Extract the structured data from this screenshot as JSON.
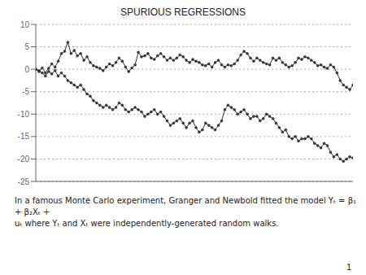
{
  "chart_data": {
    "type": "line",
    "title": "SPURIOUS REGRESSIONS",
    "annotations": [
      "In a famous Monte Carlo experiment, Granger and Newbold fitted the model Yₜ = β₁ + β₂Xₜ +\nuₜ where Yₜ and Xₜ were independently-generated random walks.",
      "1"
    ],
    "x": [
      0,
      1,
      2,
      3,
      4,
      5,
      6,
      7,
      8,
      9,
      10,
      11,
      12,
      13,
      14,
      15,
      16,
      17,
      18,
      19,
      20,
      21,
      22,
      23,
      24,
      25,
      26,
      27,
      28,
      29,
      30,
      31,
      32,
      33,
      34,
      35,
      36,
      37,
      38,
      39,
      40,
      41,
      42,
      43,
      44,
      45,
      46,
      47,
      48,
      49,
      50,
      51,
      52,
      53,
      54,
      55,
      56,
      57,
      58,
      59,
      60,
      61,
      62,
      63,
      64,
      65,
      66,
      67,
      68,
      69,
      70,
      71,
      72,
      73,
      74,
      75,
      76,
      77,
      78,
      79,
      80,
      81,
      82,
      83,
      84,
      85,
      86,
      87,
      88,
      89,
      90,
      91,
      92,
      93,
      94,
      95,
      96,
      97,
      98,
      99
    ],
    "xlim": [
      0,
      99
    ],
    "xticks": [],
    "ylim": [
      -25,
      10
    ],
    "yticks": [
      -25,
      -20,
      -15,
      -10,
      -5,
      0,
      5,
      10
    ],
    "grid": true,
    "tick_labels": "y",
    "marker": "o",
    "series": [
      {
        "color": "#333333",
        "values": [
          0.0,
          -0.5,
          0.3,
          -0.8,
          0.2,
          1.2,
          0.5,
          1.8,
          3.5,
          4.0,
          6.0,
          3.5,
          4.2,
          3.0,
          3.5,
          2.0,
          2.8,
          1.5,
          0.8,
          0.5,
          0.2,
          -0.3,
          0.5,
          1.2,
          0.8,
          1.5,
          2.5,
          1.8,
          0.5,
          -0.5,
          0.3,
          1.0,
          3.8,
          2.8,
          3.0,
          3.5,
          2.5,
          2.2,
          3.0,
          3.5,
          2.8,
          2.0,
          2.5,
          2.0,
          2.5,
          3.2,
          2.8,
          2.0,
          1.5,
          2.2,
          1.8,
          1.5,
          1.0,
          0.8,
          1.2,
          0.5,
          1.5,
          2.0,
          1.0,
          0.5,
          1.0,
          0.8,
          1.2,
          2.0,
          3.2,
          4.0,
          3.5,
          2.5,
          1.8,
          2.5,
          2.0,
          1.5,
          1.2,
          1.0,
          2.5,
          2.0,
          2.5,
          1.5,
          1.0,
          0.5,
          0.8,
          1.5,
          2.5,
          2.2,
          2.8,
          2.5,
          2.0,
          1.5,
          0.8,
          1.0,
          0.5,
          0.2,
          1.0,
          0.5,
          -0.8,
          -2.5,
          -3.5,
          -4.0,
          -4.5,
          -3.5
        ]
      },
      {
        "color": "#333333",
        "values": [
          0.0,
          -0.3,
          -0.8,
          -1.5,
          -0.5,
          -1.0,
          -0.3,
          -1.5,
          -0.8,
          -1.5,
          -2.5,
          -3.0,
          -3.5,
          -4.0,
          -3.5,
          -4.5,
          -5.5,
          -6.0,
          -7.0,
          -7.5,
          -8.0,
          -8.5,
          -8.0,
          -8.5,
          -9.0,
          -8.5,
          -7.5,
          -8.0,
          -9.0,
          -9.5,
          -9.0,
          -8.5,
          -9.0,
          -9.5,
          -10.5,
          -10.0,
          -9.5,
          -9.0,
          -10.0,
          -9.5,
          -10.5,
          -11.5,
          -12.5,
          -12.0,
          -11.5,
          -11.0,
          -12.0,
          -13.0,
          -12.0,
          -11.5,
          -13.0,
          -14.0,
          -13.5,
          -12.0,
          -12.5,
          -13.0,
          -13.5,
          -12.5,
          -11.5,
          -9.0,
          -8.0,
          -8.5,
          -9.0,
          -10.0,
          -9.5,
          -9.0,
          -10.0,
          -11.0,
          -10.5,
          -10.5,
          -11.5,
          -11.0,
          -10.0,
          -10.5,
          -11.0,
          -12.0,
          -13.0,
          -14.0,
          -13.5,
          -15.0,
          -15.5,
          -15.0,
          -16.0,
          -15.5,
          -15.5,
          -15.0,
          -15.5,
          -16.5,
          -17.0,
          -17.5,
          -16.5,
          -17.0,
          -18.5,
          -19.5,
          -19.0,
          -20.0,
          -20.5,
          -20.0,
          -19.5,
          -19.8
        ]
      }
    ]
  }
}
